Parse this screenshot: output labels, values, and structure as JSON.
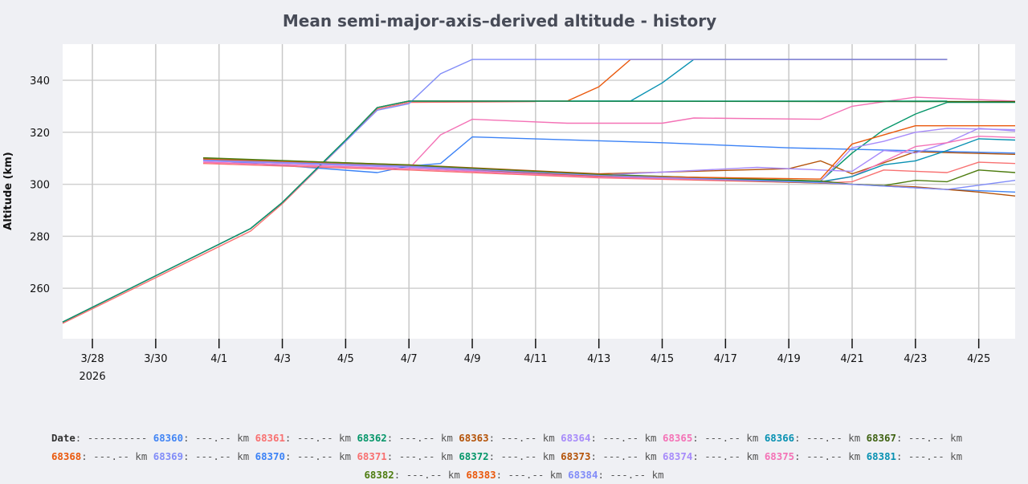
{
  "chart_data": {
    "type": "line",
    "title": "Mean semi-major-axis–derived altitude - history",
    "xlabel": "",
    "ylabel": "Altitude (km)",
    "x_units": "days since 2026-03-28",
    "xlim": [
      -0.94,
      29.15
    ],
    "ylim": [
      240.6,
      353.9
    ],
    "grid": true,
    "x_ticks": [
      {
        "day": 0,
        "label": "3/28"
      },
      {
        "day": 2,
        "label": "3/30"
      },
      {
        "day": 4,
        "label": "4/1"
      },
      {
        "day": 6,
        "label": "4/3"
      },
      {
        "day": 8,
        "label": "4/5"
      },
      {
        "day": 10,
        "label": "4/7"
      },
      {
        "day": 12,
        "label": "4/9"
      },
      {
        "day": 14,
        "label": "4/11"
      },
      {
        "day": 16,
        "label": "4/13"
      },
      {
        "day": 18,
        "label": "4/15"
      },
      {
        "day": 20,
        "label": "4/17"
      },
      {
        "day": 22,
        "label": "4/19"
      },
      {
        "day": 24,
        "label": "4/21"
      },
      {
        "day": 26,
        "label": "4/23"
      },
      {
        "day": 28,
        "label": "4/25"
      }
    ],
    "x_year_label": "2026",
    "y_ticks": [
      260,
      280,
      300,
      320,
      340
    ],
    "series": [
      {
        "name": "68360",
        "color": "#4285f4",
        "points": [
          [
            3.5,
            309.5
          ],
          [
            10,
            307
          ],
          [
            16,
            303.5
          ],
          [
            23,
            301
          ],
          [
            24,
            300
          ],
          [
            27,
            298
          ],
          [
            29.15,
            297
          ]
        ]
      },
      {
        "name": "68361",
        "color": "#f87171",
        "points": [
          [
            -0.94,
            246.5
          ],
          [
            5,
            282
          ],
          [
            6,
            292.5
          ],
          [
            8,
            316.5
          ],
          [
            9,
            329
          ],
          [
            10,
            331.5
          ],
          [
            14,
            331.8
          ]
        ]
      },
      {
        "name": "68362",
        "color": "#059669",
        "points": [
          [
            3.5,
            310
          ],
          [
            10,
            307.2
          ],
          [
            16,
            303.8
          ],
          [
            23,
            301.2
          ],
          [
            24,
            312
          ],
          [
            25,
            321
          ],
          [
            26,
            327
          ],
          [
            27,
            331.5
          ],
          [
            29.15,
            331.5
          ]
        ]
      },
      {
        "name": "68363",
        "color": "#b45309",
        "points": [
          [
            3.5,
            310
          ],
          [
            10,
            307.5
          ],
          [
            16,
            304
          ],
          [
            22,
            306
          ],
          [
            23,
            309
          ],
          [
            24,
            304
          ],
          [
            26,
            312.5
          ],
          [
            29.15,
            311.5
          ]
        ]
      },
      {
        "name": "68364",
        "color": "#a78bfa",
        "points": [
          [
            3.5,
            309
          ],
          [
            10,
            306.5
          ],
          [
            16,
            303
          ],
          [
            23,
            301
          ],
          [
            24,
            314
          ],
          [
            25,
            316.5
          ],
          [
            26,
            320
          ],
          [
            27,
            321.5
          ],
          [
            29.15,
            321
          ]
        ]
      },
      {
        "name": "68365",
        "color": "#f472b6",
        "points": [
          [
            3.5,
            308.5
          ],
          [
            10,
            306
          ],
          [
            11,
            319
          ],
          [
            12,
            325
          ],
          [
            15,
            323.5
          ],
          [
            18,
            323.5
          ],
          [
            19,
            325.5
          ],
          [
            23,
            325
          ],
          [
            24,
            330
          ],
          [
            26,
            333.5
          ],
          [
            29.15,
            332
          ]
        ]
      },
      {
        "name": "68366",
        "color": "#0891b2",
        "points": [
          [
            -0.94,
            247
          ],
          [
            5,
            283
          ],
          [
            6,
            293
          ],
          [
            8,
            317
          ],
          [
            9,
            329.5
          ],
          [
            10,
            332
          ],
          [
            17,
            332
          ],
          [
            18,
            339
          ],
          [
            19,
            348
          ],
          [
            27,
            348
          ]
        ]
      },
      {
        "name": "68367",
        "color": "#3f6212",
        "points": [
          [
            -0.94,
            247
          ],
          [
            5,
            283
          ],
          [
            6,
            293
          ],
          [
            8,
            317
          ],
          [
            9,
            329.5
          ],
          [
            10,
            332
          ],
          [
            29.15,
            331.8
          ]
        ]
      },
      {
        "name": "68368",
        "color": "#ea580c",
        "points": [
          [
            -0.94,
            247
          ],
          [
            5,
            283
          ],
          [
            6,
            293
          ],
          [
            8,
            317
          ],
          [
            9,
            329.5
          ],
          [
            10,
            332
          ],
          [
            15,
            332
          ],
          [
            16,
            337.5
          ],
          [
            17,
            348
          ],
          [
            27,
            348
          ]
        ]
      },
      {
        "name": "68369",
        "color": "#818cf8",
        "points": [
          [
            -0.94,
            247
          ],
          [
            5,
            283
          ],
          [
            6,
            293
          ],
          [
            8,
            316.5
          ],
          [
            9,
            328.5
          ],
          [
            10,
            331
          ],
          [
            11,
            342.5
          ],
          [
            12,
            348
          ],
          [
            27,
            348
          ]
        ]
      },
      {
        "name": "68370",
        "color": "#3b82f6",
        "points": [
          [
            3.5,
            309.5
          ],
          [
            9,
            304.5
          ],
          [
            10,
            307
          ],
          [
            11,
            308
          ],
          [
            12,
            318.2
          ],
          [
            18,
            316
          ],
          [
            22,
            314
          ],
          [
            29.15,
            312
          ]
        ]
      },
      {
        "name": "68371",
        "color": "#f87171",
        "points": [
          [
            3.5,
            308
          ],
          [
            10,
            305.5
          ],
          [
            16,
            302.5
          ],
          [
            23,
            300.5
          ],
          [
            24,
            301
          ],
          [
            25,
            305.5
          ],
          [
            26,
            305
          ],
          [
            27,
            304.5
          ],
          [
            28,
            308.5
          ],
          [
            29.15,
            308
          ]
        ]
      },
      {
        "name": "68372",
        "color": "#059669",
        "points": [
          [
            -0.94,
            247
          ],
          [
            5,
            283
          ],
          [
            6,
            293
          ],
          [
            8,
            317
          ],
          [
            9,
            329.5
          ],
          [
            10,
            332
          ],
          [
            27,
            332
          ]
        ]
      },
      {
        "name": "68373",
        "color": "#b45309",
        "points": [
          [
            3.5,
            310
          ],
          [
            10,
            307
          ],
          [
            16,
            303
          ],
          [
            23,
            300.5
          ],
          [
            24,
            300
          ],
          [
            26,
            299
          ],
          [
            28,
            297
          ],
          [
            29.15,
            295.5
          ]
        ]
      },
      {
        "name": "68374",
        "color": "#a78bfa",
        "points": [
          [
            3.5,
            309
          ],
          [
            10,
            306.8
          ],
          [
            16,
            303.5
          ],
          [
            21,
            306.5
          ],
          [
            23,
            305.5
          ],
          [
            24,
            305
          ],
          [
            25,
            313
          ],
          [
            26,
            312
          ],
          [
            27,
            316
          ],
          [
            28,
            321.5
          ],
          [
            29.15,
            320.5
          ]
        ]
      },
      {
        "name": "68375",
        "color": "#f472b6",
        "points": [
          [
            3.5,
            308.5
          ],
          [
            10,
            306
          ],
          [
            16,
            302.8
          ],
          [
            23,
            300.8
          ],
          [
            24,
            303
          ],
          [
            26,
            314.5
          ],
          [
            27,
            316
          ],
          [
            28,
            318.5
          ],
          [
            29.15,
            318
          ]
        ]
      },
      {
        "name": "68381",
        "color": "#0891b2",
        "points": [
          [
            3.5,
            309.8
          ],
          [
            10,
            307.3
          ],
          [
            16,
            303.6
          ],
          [
            23,
            301
          ],
          [
            24,
            303
          ],
          [
            25,
            307.5
          ],
          [
            26,
            309
          ],
          [
            27,
            313
          ],
          [
            28,
            317.5
          ],
          [
            29.15,
            317
          ]
        ]
      },
      {
        "name": "68382",
        "color": "#4d7c0f",
        "points": [
          [
            3.5,
            310.2
          ],
          [
            10,
            307.4
          ],
          [
            16,
            303.7
          ],
          [
            23,
            301.3
          ],
          [
            24,
            300
          ],
          [
            25,
            299.5
          ],
          [
            26,
            301.5
          ],
          [
            27,
            301
          ],
          [
            28,
            305.5
          ],
          [
            29.15,
            304.5
          ]
        ]
      },
      {
        "name": "68383",
        "color": "#ea580c",
        "points": [
          [
            3.5,
            309.7
          ],
          [
            10,
            307
          ],
          [
            16,
            303.2
          ],
          [
            23,
            302
          ],
          [
            24,
            315.5
          ],
          [
            26,
            322.5
          ],
          [
            29.15,
            322.5
          ]
        ]
      },
      {
        "name": "68384",
        "color": "#818cf8",
        "points": [
          [
            3.5,
            309.3
          ],
          [
            10,
            306.9
          ],
          [
            16,
            303.4
          ],
          [
            23,
            300.6
          ],
          [
            27,
            298
          ],
          [
            29.15,
            301.5
          ]
        ]
      }
    ]
  },
  "legend": {
    "date_label": "Date",
    "date_value": "----------",
    "value_placeholder": "---.-- km",
    "rows": [
      [
        "68360",
        "68361",
        "68362",
        "68363",
        "68364",
        "68365",
        "68366",
        "68367"
      ],
      [
        "68368",
        "68369",
        "68370",
        "68371",
        "68372",
        "68373",
        "68374",
        "68375",
        "68381"
      ],
      [
        "68382",
        "68383",
        "68384"
      ]
    ]
  }
}
